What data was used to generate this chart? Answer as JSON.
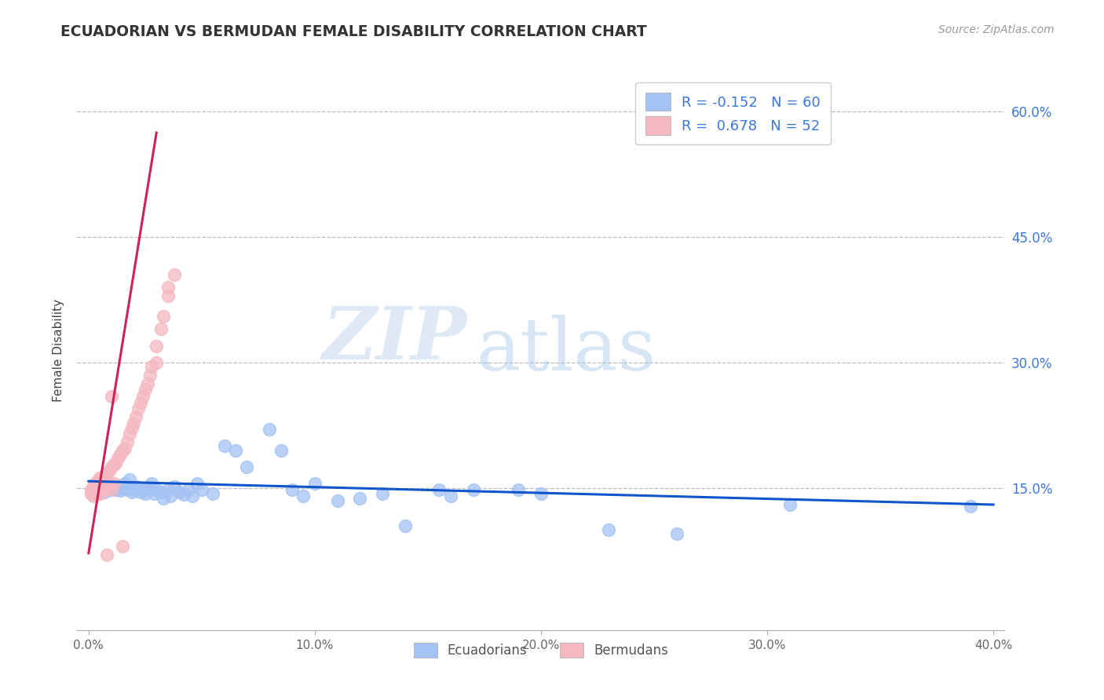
{
  "title": "ECUADORIAN VS BERMUDAN FEMALE DISABILITY CORRELATION CHART",
  "source": "Source: ZipAtlas.com",
  "ylabel": "Female Disability",
  "xlim": [
    -0.005,
    0.405
  ],
  "ylim": [
    -0.02,
    0.65
  ],
  "x_ticks": [
    0.0,
    0.1,
    0.2,
    0.3,
    0.4
  ],
  "x_tick_labels": [
    "0.0%",
    "10.0%",
    "20.0%",
    "30.0%",
    "40.0%"
  ],
  "y_ticks": [
    0.15,
    0.3,
    0.45,
    0.6
  ],
  "y_tick_labels": [
    "15.0%",
    "30.0%",
    "45.0%",
    "60.0%"
  ],
  "blue_R": -0.152,
  "blue_N": 60,
  "pink_R": 0.678,
  "pink_N": 52,
  "blue_color": "#a4c2f4",
  "pink_color": "#f4b8c1",
  "blue_line_color": "#1155cc",
  "pink_line_color": "#cc2255",
  "legend_label_blue": "Ecuadorians",
  "legend_label_pink": "Bermudans",
  "watermark_zip": "ZIP",
  "watermark_atlas": "atlas",
  "blue_scatter_x": [
    0.003,
    0.005,
    0.006,
    0.007,
    0.008,
    0.009,
    0.01,
    0.011,
    0.012,
    0.013,
    0.014,
    0.015,
    0.016,
    0.017,
    0.018,
    0.019,
    0.02,
    0.021,
    0.022,
    0.023,
    0.024,
    0.025,
    0.026,
    0.027,
    0.028,
    0.029,
    0.03,
    0.032,
    0.033,
    0.035,
    0.036,
    0.038,
    0.04,
    0.042,
    0.044,
    0.046,
    0.048,
    0.05,
    0.055,
    0.06,
    0.065,
    0.07,
    0.08,
    0.085,
    0.09,
    0.095,
    0.1,
    0.11,
    0.12,
    0.13,
    0.14,
    0.155,
    0.16,
    0.17,
    0.19,
    0.2,
    0.23,
    0.26,
    0.31,
    0.39
  ],
  "blue_scatter_y": [
    0.15,
    0.148,
    0.152,
    0.145,
    0.155,
    0.148,
    0.152,
    0.15,
    0.148,
    0.153,
    0.147,
    0.15,
    0.155,
    0.148,
    0.16,
    0.145,
    0.148,
    0.152,
    0.15,
    0.145,
    0.148,
    0.143,
    0.15,
    0.148,
    0.155,
    0.143,
    0.148,
    0.145,
    0.138,
    0.148,
    0.14,
    0.152,
    0.145,
    0.142,
    0.148,
    0.14,
    0.155,
    0.148,
    0.143,
    0.2,
    0.195,
    0.175,
    0.22,
    0.195,
    0.148,
    0.14,
    0.155,
    0.135,
    0.138,
    0.143,
    0.105,
    0.148,
    0.14,
    0.148,
    0.148,
    0.143,
    0.1,
    0.095,
    0.13,
    0.128
  ],
  "pink_scatter_x": [
    0.001,
    0.001,
    0.002,
    0.002,
    0.003,
    0.003,
    0.003,
    0.004,
    0.004,
    0.005,
    0.005,
    0.005,
    0.006,
    0.006,
    0.007,
    0.007,
    0.007,
    0.008,
    0.008,
    0.009,
    0.009,
    0.01,
    0.01,
    0.011,
    0.011,
    0.012,
    0.013,
    0.014,
    0.015,
    0.016,
    0.017,
    0.018,
    0.019,
    0.02,
    0.021,
    0.022,
    0.023,
    0.024,
    0.025,
    0.026,
    0.027,
    0.028,
    0.03,
    0.032,
    0.03,
    0.033,
    0.035,
    0.038,
    0.035,
    0.01,
    0.015,
    0.008
  ],
  "pink_scatter_y": [
    0.148,
    0.143,
    0.152,
    0.14,
    0.155,
    0.143,
    0.148,
    0.158,
    0.143,
    0.162,
    0.148,
    0.143,
    0.162,
    0.148,
    0.165,
    0.15,
    0.148,
    0.168,
    0.155,
    0.17,
    0.155,
    0.175,
    0.148,
    0.178,
    0.155,
    0.18,
    0.185,
    0.19,
    0.195,
    0.198,
    0.205,
    0.215,
    0.222,
    0.228,
    0.235,
    0.245,
    0.252,
    0.26,
    0.268,
    0.275,
    0.285,
    0.295,
    0.32,
    0.34,
    0.3,
    0.355,
    0.38,
    0.405,
    0.39,
    0.26,
    0.08,
    0.07
  ],
  "pink_line_x": [
    0.0,
    0.03
  ],
  "pink_line_y": [
    0.072,
    0.575
  ],
  "blue_line_x": [
    0.0,
    0.4
  ],
  "blue_line_y": [
    0.158,
    0.13
  ]
}
